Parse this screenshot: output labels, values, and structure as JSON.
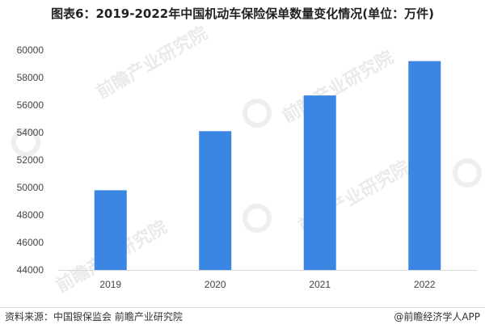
{
  "title": "图表6：2019-2022年中国机动车保险保单数量变化情况(单位：万件)",
  "source": "资料来源：中国银保监会 前瞻产业研究院",
  "brand": "@前瞻经济学人APP",
  "watermark_text": "前瞻产业研究院",
  "colors": {
    "bar": "#3b86e3"
  },
  "chart_data": {
    "type": "bar",
    "categories": [
      "2019",
      "2020",
      "2021",
      "2022"
    ],
    "values": [
      49800,
      54100,
      56700,
      59200
    ],
    "xlabel": "",
    "ylabel": "",
    "ylim": [
      44000,
      60000
    ],
    "yticks": [
      44000,
      46000,
      48000,
      50000,
      52000,
      54000,
      56000,
      58000,
      60000
    ],
    "grid": false,
    "legend": "none"
  }
}
